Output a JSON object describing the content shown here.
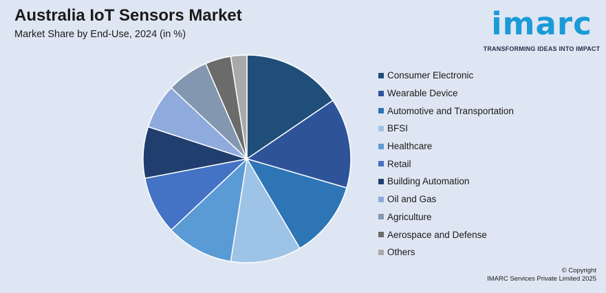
{
  "header": {
    "title": "Australia IoT Sensors Market",
    "subtitle": "Market Share by End-Use, 2024 (in %)"
  },
  "logo": {
    "word": "imarc",
    "tagline": "TRANSFORMING IDEAS INTO IMPACT"
  },
  "copyright": {
    "line1": "© Copyright",
    "line2": "IMARC Services Private Limited 2025"
  },
  "chart_data": {
    "type": "pie",
    "title": "Australia IoT Sensors Market",
    "subtitle": "Market Share by End-Use, 2024 (in %)",
    "legend_position": "right",
    "labels": [
      "Consumer Electronic",
      "Wearable Device",
      "Automotive and Transportation",
      "BFSI",
      "Healthcare",
      "Retail",
      "Building Automation",
      "Oil and Gas",
      "Agriculture",
      "Aerospace and Defense",
      "Others"
    ],
    "values": [
      15.5,
      14.0,
      12.0,
      11.0,
      10.5,
      9.0,
      8.0,
      7.0,
      6.5,
      4.0,
      2.5
    ],
    "colors": [
      "#1f4e79",
      "#2e5399",
      "#2e75b6",
      "#9dc3e6",
      "#5b9bd5",
      "#4472c4",
      "#203f6e",
      "#8faadc",
      "#8497b0",
      "#6b6b6b",
      "#a9a9a9"
    ]
  }
}
